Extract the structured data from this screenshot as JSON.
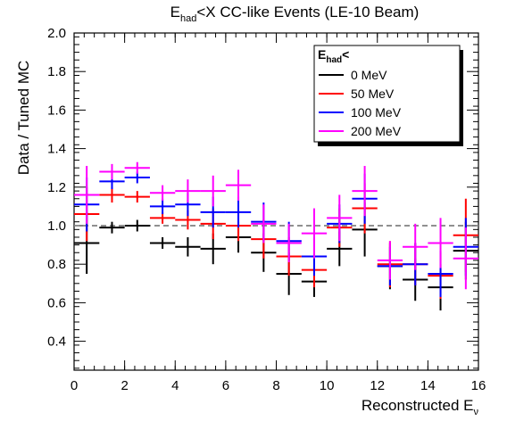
{
  "chart_data": {
    "type": "scatter",
    "title": {
      "main": "E",
      "sub": "had",
      "rest": "<X CC-like Events (LE-10 Beam)"
    },
    "xlabel": {
      "main": "Reconstructed E",
      "sub": "ν"
    },
    "ylabel": "Data / Tuned MC",
    "xlim": [
      0,
      16
    ],
    "ylim": [
      0.25,
      2.0
    ],
    "xticks": [
      0,
      2,
      4,
      6,
      8,
      10,
      12,
      14,
      16
    ],
    "xtick_labels": [
      "0",
      "2",
      "4",
      "6",
      "8",
      "10",
      "12",
      "14",
      "16"
    ],
    "yticks": [
      0.4,
      0.6,
      0.8,
      1.0,
      1.2,
      1.4,
      1.6,
      1.8,
      2.0
    ],
    "ytick_labels": [
      "0.4",
      "0.6",
      "0.8",
      "1.0",
      "1.2",
      "1.4",
      "1.6",
      "1.8",
      "2.0"
    ],
    "reference_line": {
      "y": 1.0,
      "style": "dashed",
      "color": "#808080"
    },
    "grid": false,
    "legend": {
      "title": {
        "main": "E",
        "sub": "had",
        "rest": "<"
      },
      "placement": "top-right"
    },
    "bin_width": 1,
    "series": [
      {
        "name": "0 MeV",
        "color": "#000000",
        "x": [
          0.5,
          1.5,
          2.5,
          3.5,
          4.5,
          5.5,
          6.5,
          7.5,
          8.5,
          9.5,
          10.5,
          11.5,
          12.5,
          13.5,
          14.5,
          15.5
        ],
        "y": [
          0.91,
          0.99,
          1.0,
          0.91,
          0.89,
          0.88,
          0.94,
          0.86,
          0.75,
          0.71,
          0.88,
          0.98,
          0.79,
          0.72,
          0.68,
          0.87
        ],
        "err": [
          0.16,
          0.03,
          0.03,
          0.03,
          0.05,
          0.08,
          0.08,
          0.1,
          0.11,
          0.08,
          0.09,
          0.14,
          0.12,
          0.11,
          0.12,
          0.15
        ]
      },
      {
        "name": "50 MeV",
        "color": "#ff0000",
        "x": [
          0.5,
          1.5,
          2.5,
          3.5,
          4.5,
          5.5,
          6.5,
          7.5,
          8.5,
          9.5,
          10.5,
          11.5,
          12.5,
          13.5,
          14.5,
          15.5
        ],
        "y": [
          1.06,
          1.16,
          1.15,
          1.04,
          1.03,
          1.01,
          1.0,
          0.93,
          0.84,
          0.77,
          0.99,
          1.09,
          0.8,
          0.8,
          0.74,
          0.95
        ],
        "err": [
          0.14,
          0.04,
          0.03,
          0.03,
          0.05,
          0.08,
          0.08,
          0.1,
          0.1,
          0.09,
          0.1,
          0.13,
          0.12,
          0.11,
          0.12,
          0.19
        ]
      },
      {
        "name": "100 MeV",
        "color": "#0000ff",
        "x": [
          0.5,
          1.5,
          2.5,
          3.5,
          4.5,
          5.5,
          6.5,
          7.5,
          8.5,
          9.5,
          10.5,
          11.5,
          12.5,
          13.5,
          14.5,
          15.5
        ],
        "y": [
          1.11,
          1.23,
          1.25,
          1.1,
          1.11,
          1.07,
          1.07,
          1.02,
          0.92,
          0.84,
          1.01,
          1.14,
          0.79,
          0.8,
          0.75,
          0.89
        ],
        "err": [
          0.14,
          0.04,
          0.03,
          0.04,
          0.06,
          0.08,
          0.08,
          0.1,
          0.1,
          0.1,
          0.1,
          0.13,
          0.1,
          0.11,
          0.12,
          0.15
        ]
      },
      {
        "name": "200 MeV",
        "color": "#ff00ff",
        "x": [
          0.5,
          1.5,
          2.5,
          3.5,
          4.5,
          5.5,
          6.5,
          7.5,
          8.5,
          9.5,
          10.5,
          11.5,
          12.5,
          13.5,
          14.5,
          15.5
        ],
        "y": [
          1.16,
          1.28,
          1.3,
          1.17,
          1.18,
          1.18,
          1.21,
          1.01,
          0.91,
          0.96,
          1.04,
          1.18,
          0.82,
          0.89,
          0.91,
          0.83
        ],
        "err": [
          0.15,
          0.04,
          0.03,
          0.04,
          0.06,
          0.08,
          0.08,
          0.1,
          0.1,
          0.13,
          0.12,
          0.13,
          0.1,
          0.12,
          0.13,
          0.16
        ]
      }
    ]
  }
}
